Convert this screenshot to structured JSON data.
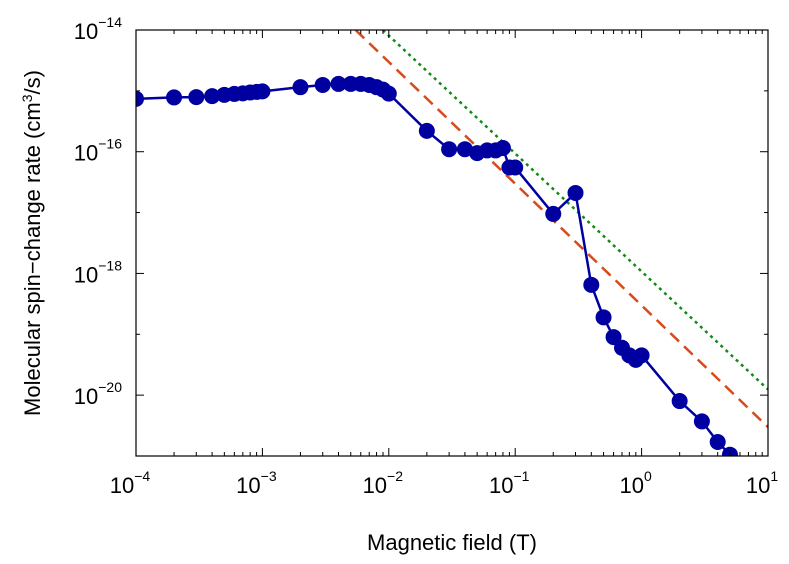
{
  "chart_data": {
    "type": "line",
    "xlabel": "Magnetic field (T)",
    "ylabel_prefix": "Molecular spin−change rate (cm",
    "ylabel_sup": "3",
    "ylabel_suffix": "/s)",
    "x_scale": "log",
    "y_scale": "log",
    "xlim": [
      0.0001,
      10
    ],
    "ylim": [
      1e-21,
      1e-14
    ],
    "grid": false,
    "legend": "none",
    "x_ticks": [
      {
        "base": "10",
        "exp": "−4",
        "value": 0.0001
      },
      {
        "base": "10",
        "exp": "−3",
        "value": 0.001
      },
      {
        "base": "10",
        "exp": "−2",
        "value": 0.01
      },
      {
        "base": "10",
        "exp": "−1",
        "value": 0.1
      },
      {
        "base": "10",
        "exp": "0",
        "value": 1
      },
      {
        "base": "10",
        "exp": "1",
        "value": 10
      }
    ],
    "y_ticks": [
      {
        "base": "10",
        "exp": "−14",
        "value": 1e-14
      },
      {
        "base": "10",
        "exp": "−16",
        "value": 1e-16
      },
      {
        "base": "10",
        "exp": "−18",
        "value": 1e-18
      },
      {
        "base": "10",
        "exp": "−20",
        "value": 1e-20
      }
    ],
    "series": [
      {
        "color": "#0000a0",
        "style": "line-markers",
        "x": [
          0.0001,
          0.0002,
          0.0003,
          0.0004,
          0.0005,
          0.0006,
          0.0007,
          0.0008,
          0.0009,
          0.001,
          0.002,
          0.003,
          0.004,
          0.005,
          0.006,
          0.007,
          0.008,
          0.009,
          0.01,
          0.02,
          0.03,
          0.04,
          0.05,
          0.06,
          0.07,
          0.08,
          0.09,
          0.1,
          0.2,
          0.3,
          0.4,
          0.5,
          0.6,
          0.7,
          0.8,
          0.9,
          1.0,
          2.0,
          3.0,
          4.0,
          5.0
        ],
        "y": [
          7.4e-16,
          7.8e-16,
          7.9e-16,
          8.2e-16,
          8.6e-16,
          8.9e-16,
          9.1e-16,
          9.4e-16,
          9.6e-16,
          9.8e-16,
          1.15e-15,
          1.25e-15,
          1.3e-15,
          1.3e-15,
          1.3e-15,
          1.25e-15,
          1.15e-15,
          1.05e-15,
          9e-16,
          2.2e-16,
          1.1e-16,
          1.1e-16,
          9.5e-17,
          1.05e-16,
          1.05e-16,
          1.15e-16,
          5.5e-17,
          5.5e-17,
          9.5e-18,
          2.1e-17,
          6.5e-19,
          1.9e-19,
          9e-20,
          6e-20,
          4.5e-20,
          3.8e-20,
          4.5e-20,
          8e-21,
          3.7e-21,
          1.7e-21,
          1.05e-21
        ]
      },
      {
        "color": "#d84a1b",
        "style": "dashed",
        "x": [
          0.00546,
          10
        ],
        "y": [
          1e-14,
          2.98e-21
        ]
      },
      {
        "color": "#138a13",
        "style": "dotted",
        "x": [
          0.00897,
          10
        ],
        "y": [
          1e-14,
          1.24e-20
        ]
      }
    ]
  }
}
